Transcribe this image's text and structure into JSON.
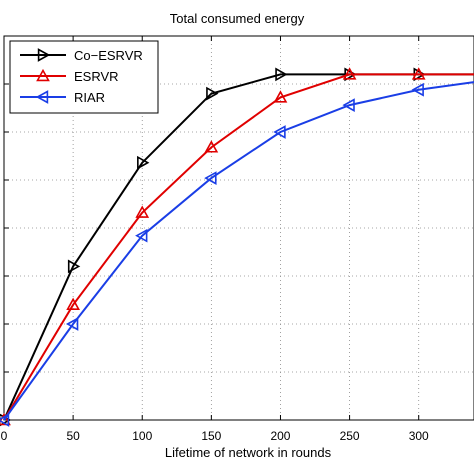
{
  "chart_data": {
    "type": "line",
    "title": "Total consumed energy",
    "xlabel": "Lifetime of network in rounds",
    "ylabel": "",
    "xlim": [
      0,
      340
    ],
    "ylim": [
      0,
      1
    ],
    "xticks": [
      0,
      50,
      100,
      150,
      200,
      250,
      300
    ],
    "xtick_labels": [
      "0",
      "50",
      "100",
      "150",
      "200",
      "250",
      "300"
    ],
    "y_tick_count": 9,
    "grid": true,
    "legend_position": "top-left",
    "series": [
      {
        "name": "Co−ESRVR",
        "color": "#000000",
        "marker": "triangle-right",
        "x": [
          0,
          50,
          100,
          150,
          200,
          250,
          300,
          340
        ],
        "y": [
          0.0,
          0.4,
          0.67,
          0.85,
          0.9,
          0.9,
          0.9,
          0.9
        ]
      },
      {
        "name": "ESRVR",
        "color": "#e00000",
        "marker": "triangle-up",
        "x": [
          0,
          50,
          100,
          150,
          200,
          250,
          300,
          340
        ],
        "y": [
          0.0,
          0.3,
          0.54,
          0.71,
          0.84,
          0.9,
          0.9,
          0.9
        ]
      },
      {
        "name": "RIAR",
        "color": "#1a3ee6",
        "marker": "triangle-left",
        "x": [
          0,
          50,
          100,
          150,
          200,
          250,
          300,
          340
        ],
        "y": [
          0.0,
          0.25,
          0.48,
          0.63,
          0.75,
          0.82,
          0.86,
          0.88
        ]
      }
    ]
  }
}
